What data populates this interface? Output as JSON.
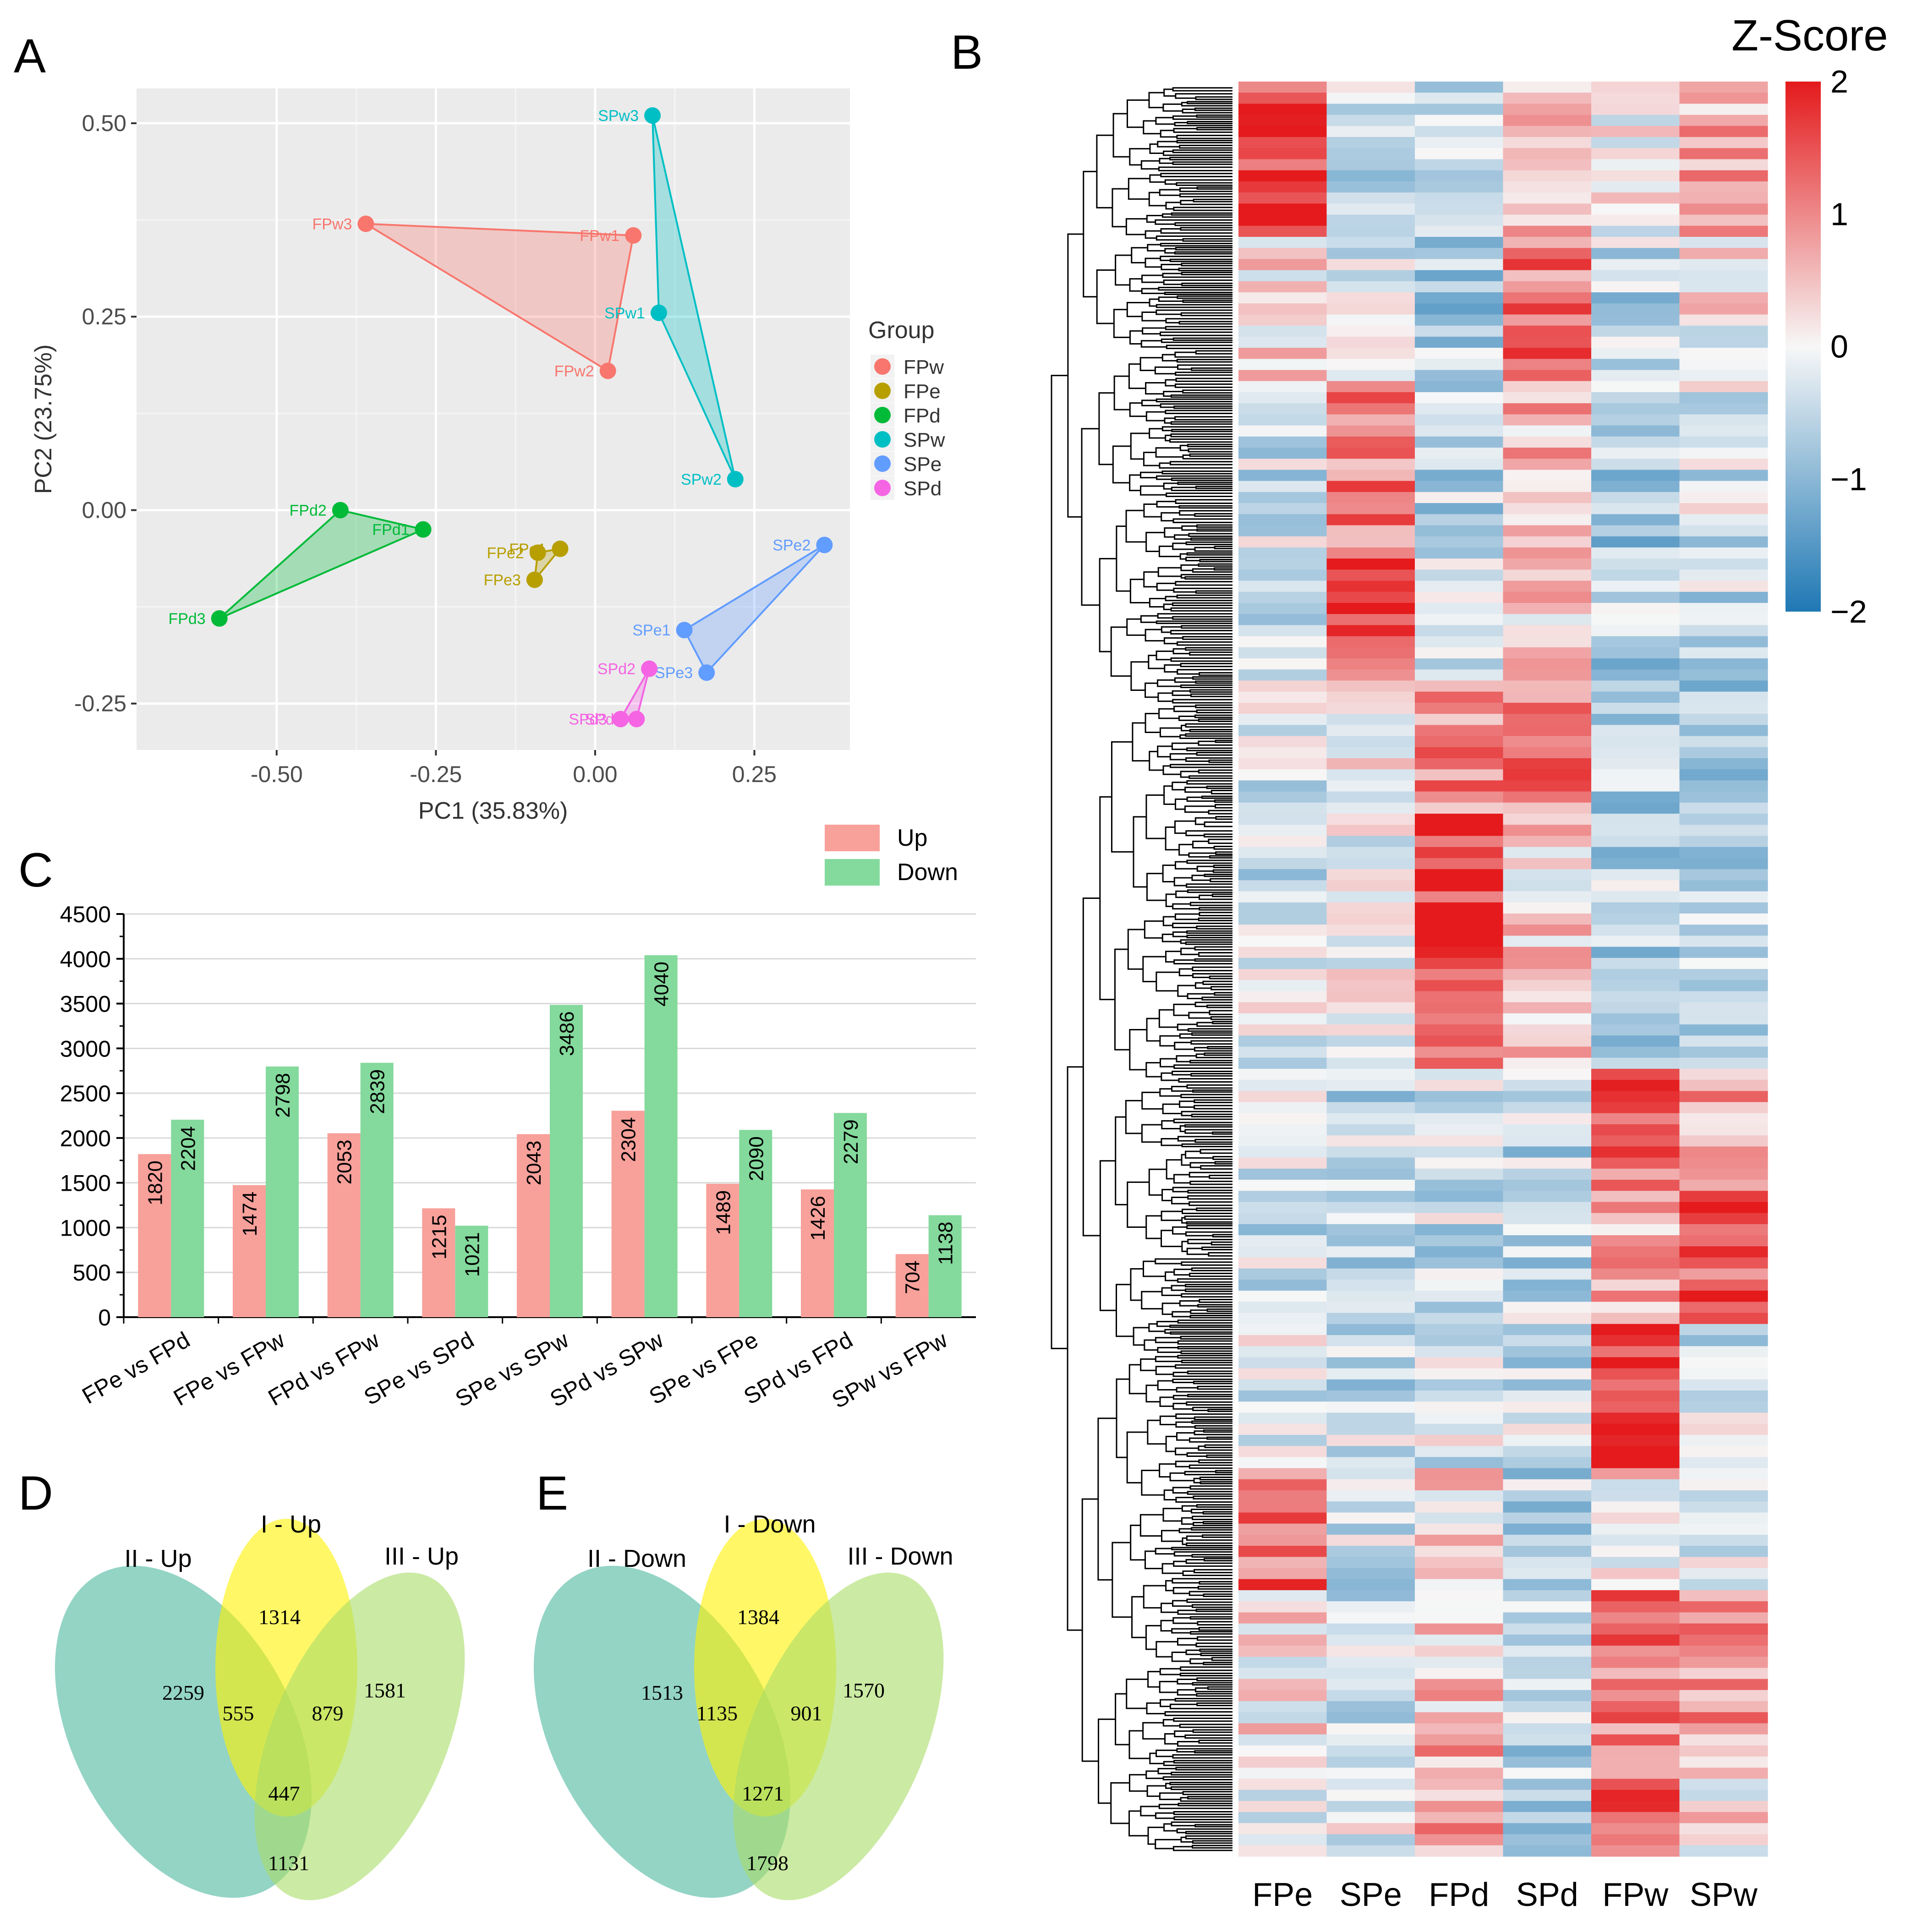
{
  "panel_labels": {
    "a": "A",
    "b": "B",
    "c": "C",
    "d": "D",
    "e": "E"
  },
  "chart_data": [
    {
      "id": "pca",
      "type": "scatter",
      "xlabel": "PC1 (35.83%)",
      "ylabel": "PC2 (23.75%)",
      "xlim": [
        -0.72,
        0.4
      ],
      "ylim": [
        -0.31,
        0.545
      ],
      "xticks": [
        "-0.50",
        "-0.25",
        "0.00",
        "0.25"
      ],
      "xtick_values": [
        -0.5,
        -0.25,
        0.0,
        0.25
      ],
      "yticks": [
        "0.50",
        "0.25",
        "0.00",
        "-0.25"
      ],
      "ytick_values": [
        0.5,
        0.25,
        0.0,
        -0.25
      ],
      "legend_title": "Group",
      "legend_position": "right",
      "groups": [
        {
          "name": "FPw",
          "color": "#F8766D",
          "points": [
            {
              "label": "FPw1",
              "x": 0.06,
              "y": 0.355
            },
            {
              "label": "FPw2",
              "x": 0.02,
              "y": 0.18
            },
            {
              "label": "FPw3",
              "x": -0.36,
              "y": 0.37
            }
          ]
        },
        {
          "name": "FPe",
          "color": "#B79F00",
          "points": [
            {
              "label": "FPe1",
              "x": -0.055,
              "y": -0.05
            },
            {
              "label": "FPe2",
              "x": -0.09,
              "y": -0.055
            },
            {
              "label": "FPe3",
              "x": -0.095,
              "y": -0.09
            }
          ]
        },
        {
          "name": "FPd",
          "color": "#00BA38",
          "points": [
            {
              "label": "FPd1",
              "x": -0.27,
              "y": -0.025
            },
            {
              "label": "FPd2",
              "x": -0.4,
              "y": 0.0
            },
            {
              "label": "FPd3",
              "x": -0.59,
              "y": -0.14
            }
          ]
        },
        {
          "name": "SPw",
          "color": "#00BFC4",
          "points": [
            {
              "label": "SPw1",
              "x": 0.1,
              "y": 0.255
            },
            {
              "label": "SPw2",
              "x": 0.22,
              "y": 0.04
            },
            {
              "label": "SPw3",
              "x": 0.09,
              "y": 0.51
            }
          ]
        },
        {
          "name": "SPe",
          "color": "#619CFF",
          "points": [
            {
              "label": "SPe1",
              "x": 0.14,
              "y": -0.155
            },
            {
              "label": "SPe2",
              "x": 0.36,
              "y": -0.045
            },
            {
              "label": "SPe3",
              "x": 0.175,
              "y": -0.21
            }
          ]
        },
        {
          "name": "SPd",
          "color": "#F564E3",
          "points": [
            {
              "label": "SPd1",
              "x": 0.065,
              "y": -0.27
            },
            {
              "label": "SPd2",
              "x": 0.085,
              "y": -0.205
            },
            {
              "label": "SPd3",
              "x": 0.04,
              "y": -0.27
            }
          ]
        }
      ]
    },
    {
      "id": "heatmap",
      "type": "heatmap",
      "title": "Z-Score",
      "columns": [
        "FPe",
        "SPe",
        "FPd",
        "SPd",
        "FPw",
        "SPw"
      ],
      "scale_ticks": [
        "2",
        "1",
        "0",
        "−1",
        "−2"
      ],
      "scale_values": [
        2,
        1,
        0,
        -1,
        -2
      ],
      "scale_colors": [
        "#E41A1C",
        "#F7F7F7",
        "#1F78B4"
      ],
      "blocks": [
        {
          "span": [
            0.0,
            0.09
          ],
          "z": [
            1.7,
            -0.4,
            -0.6,
            0.5,
            0.0,
            0.7
          ]
        },
        {
          "span": [
            0.09,
            0.17
          ],
          "z": [
            0.3,
            -0.3,
            -0.7,
            1.2,
            -0.5,
            0.1
          ]
        },
        {
          "span": [
            0.17,
            0.26
          ],
          "z": [
            -0.4,
            1.1,
            -0.6,
            0.6,
            -0.7,
            -0.3
          ]
        },
        {
          "span": [
            0.26,
            0.34
          ],
          "z": [
            -0.5,
            1.6,
            -0.5,
            0.3,
            -0.6,
            -0.5
          ]
        },
        {
          "span": [
            0.34,
            0.41
          ],
          "z": [
            -0.3,
            0.2,
            1.0,
            1.1,
            -0.7,
            -0.6
          ]
        },
        {
          "span": [
            0.41,
            0.49
          ],
          "z": [
            -0.3,
            -0.2,
            1.7,
            0.3,
            -0.6,
            -0.5
          ]
        },
        {
          "span": [
            0.49,
            0.555
          ],
          "z": [
            -0.2,
            0.1,
            1.5,
            0.5,
            -0.6,
            -0.5
          ]
        },
        {
          "span": [
            0.555,
            0.625
          ],
          "z": [
            -0.4,
            -0.5,
            -0.3,
            -0.5,
            1.3,
            0.8
          ]
        },
        {
          "span": [
            0.625,
            0.7
          ],
          "z": [
            -0.4,
            -0.5,
            -0.4,
            -0.5,
            0.6,
            1.5
          ]
        },
        {
          "span": [
            0.7,
            0.78
          ],
          "z": [
            -0.3,
            -0.4,
            -0.2,
            -0.4,
            1.8,
            -0.3
          ]
        },
        {
          "span": [
            0.78,
            0.85
          ],
          "z": [
            1.3,
            -0.4,
            0.3,
            -0.5,
            0.2,
            -0.3
          ]
        },
        {
          "span": [
            0.85,
            0.93
          ],
          "z": [
            0.2,
            -0.3,
            0.5,
            -0.6,
            1.1,
            1.0
          ]
        },
        {
          "span": [
            0.93,
            1.0
          ],
          "z": [
            -0.3,
            -0.2,
            0.8,
            -0.5,
            1.3,
            0.2
          ]
        }
      ]
    },
    {
      "id": "deg_bars",
      "type": "bar",
      "categories": [
        "FPe vs FPd",
        "FPe vs FPw",
        "FPd vs FPw",
        "SPe vs SPd",
        "SPe vs SPw",
        "SPd vs SPw",
        "SPe vs FPe",
        "SPd vs FPd",
        "SPw vs FPw"
      ],
      "series": [
        {
          "name": "Up",
          "color": "#F8A09A",
          "values": [
            1820,
            1474,
            2053,
            1215,
            2043,
            2304,
            1489,
            1426,
            704
          ]
        },
        {
          "name": "Down",
          "color": "#84D99C",
          "values": [
            2204,
            2798,
            2839,
            1021,
            3486,
            4040,
            2090,
            2279,
            1138
          ]
        }
      ],
      "ylim": [
        0,
        4500
      ],
      "yticks": [
        "0",
        "500",
        "1000",
        "1500",
        "2000",
        "2500",
        "3000",
        "3500",
        "4000",
        "4500"
      ],
      "ytick_values": [
        0,
        500,
        1000,
        1500,
        2000,
        2500,
        3000,
        3500,
        4000,
        4500
      ],
      "legend_position": "top-right"
    },
    {
      "id": "venn_up",
      "type": "venn",
      "sets": [
        {
          "name": "II - Up",
          "color": "#4BB89F"
        },
        {
          "name": "I - Up",
          "color": "#FFF200"
        },
        {
          "name": "III - Up",
          "color": "#A8DC68"
        }
      ],
      "regions": [
        {
          "sets": [
            "I"
          ],
          "value": 1314
        },
        {
          "sets": [
            "II"
          ],
          "value": 2259
        },
        {
          "sets": [
            "III"
          ],
          "value": 1581
        },
        {
          "sets": [
            "I",
            "II"
          ],
          "value": 555
        },
        {
          "sets": [
            "I",
            "III"
          ],
          "value": 879
        },
        {
          "sets": [
            "I",
            "II",
            "III"
          ],
          "value": 447
        },
        {
          "sets": [
            "II",
            "III"
          ],
          "value": 1131
        }
      ]
    },
    {
      "id": "venn_down",
      "type": "venn",
      "sets": [
        {
          "name": "II - Down",
          "color": "#4BB89F"
        },
        {
          "name": "I - Down",
          "color": "#FFF200"
        },
        {
          "name": "III - Down",
          "color": "#A8DC68"
        }
      ],
      "regions": [
        {
          "sets": [
            "I"
          ],
          "value": 1384
        },
        {
          "sets": [
            "II"
          ],
          "value": 1513
        },
        {
          "sets": [
            "III"
          ],
          "value": 1570
        },
        {
          "sets": [
            "I",
            "II"
          ],
          "value": 1135
        },
        {
          "sets": [
            "I",
            "III"
          ],
          "value": 901
        },
        {
          "sets": [
            "I",
            "II",
            "III"
          ],
          "value": 1271
        },
        {
          "sets": [
            "II",
            "III"
          ],
          "value": 1798
        }
      ]
    }
  ]
}
